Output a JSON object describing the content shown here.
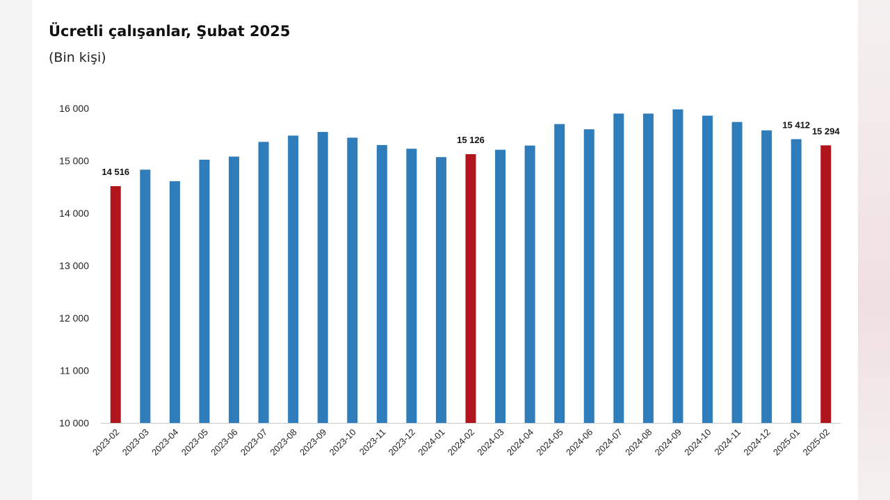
{
  "chart_data": {
    "type": "bar",
    "title": "Ücretli çalışanlar, Şubat 2025",
    "subtitle": "(Bin kişi)",
    "xlabel": "",
    "ylabel": "",
    "ylim": [
      10000,
      16000
    ],
    "yticks": [
      10000,
      11000,
      12000,
      13000,
      14000,
      15000,
      16000
    ],
    "ytick_labels": [
      "10 000",
      "11 000",
      "12 000",
      "13 000",
      "14 000",
      "15 000",
      "16 000"
    ],
    "grid": false,
    "categories": [
      "2023-02",
      "2023-03",
      "2023-04",
      "2023-05",
      "2023-06",
      "2023-07",
      "2023-08",
      "2023-09",
      "2023-10",
      "2023-11",
      "2023-12",
      "2024-01",
      "2024-02",
      "2024-03",
      "2024-04",
      "2024-05",
      "2024-06",
      "2024-07",
      "2024-08",
      "2024-09",
      "2024-10",
      "2024-11",
      "2024-12",
      "2025-01",
      "2025-02"
    ],
    "values": [
      14516,
      14830,
      14610,
      15020,
      15080,
      15360,
      15480,
      15550,
      15440,
      15300,
      15230,
      15070,
      15126,
      15210,
      15290,
      15700,
      15600,
      15900,
      15900,
      15980,
      15860,
      15740,
      15580,
      15412,
      15294
    ],
    "highlight_indices": [
      0,
      12,
      24
    ],
    "data_labels": [
      {
        "index": 0,
        "text": "14 516"
      },
      {
        "index": 12,
        "text": "15 126"
      },
      {
        "index": 23,
        "text": "15 412"
      },
      {
        "index": 24,
        "text": "15 294"
      }
    ],
    "colors": {
      "bar": "#2e7dba",
      "highlight": "#b0151b",
      "axis": "#c8c8c8"
    }
  }
}
